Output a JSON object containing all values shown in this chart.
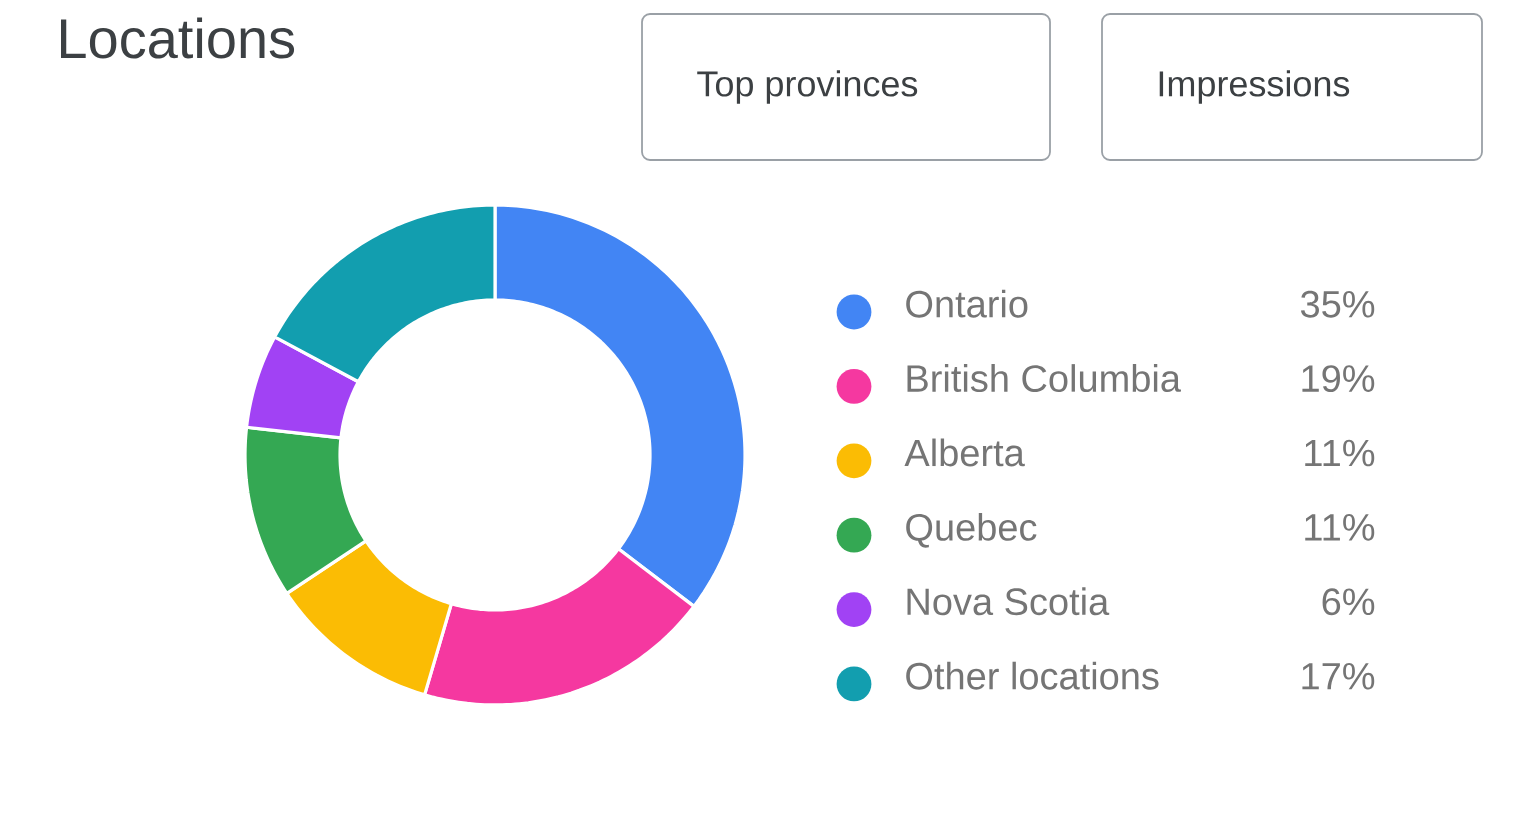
{
  "chart_data": {
    "type": "donut",
    "title": "Locations",
    "categories": [
      "Ontario",
      "British Columbia",
      "Alberta",
      "Quebec",
      "Nova Scotia",
      "Other locations"
    ],
    "values": [
      35,
      19,
      11,
      11,
      6,
      17
    ],
    "colors": [
      "#4285f4",
      "#f538a0",
      "#fbbc04",
      "#34a853",
      "#a142f4",
      "#129eaf"
    ],
    "value_labels": [
      "35%",
      "19%",
      "11%",
      "11%",
      "6%",
      "17%"
    ],
    "legend": "right",
    "annotations": [
      "Top provinces",
      "Impressions"
    ]
  }
}
